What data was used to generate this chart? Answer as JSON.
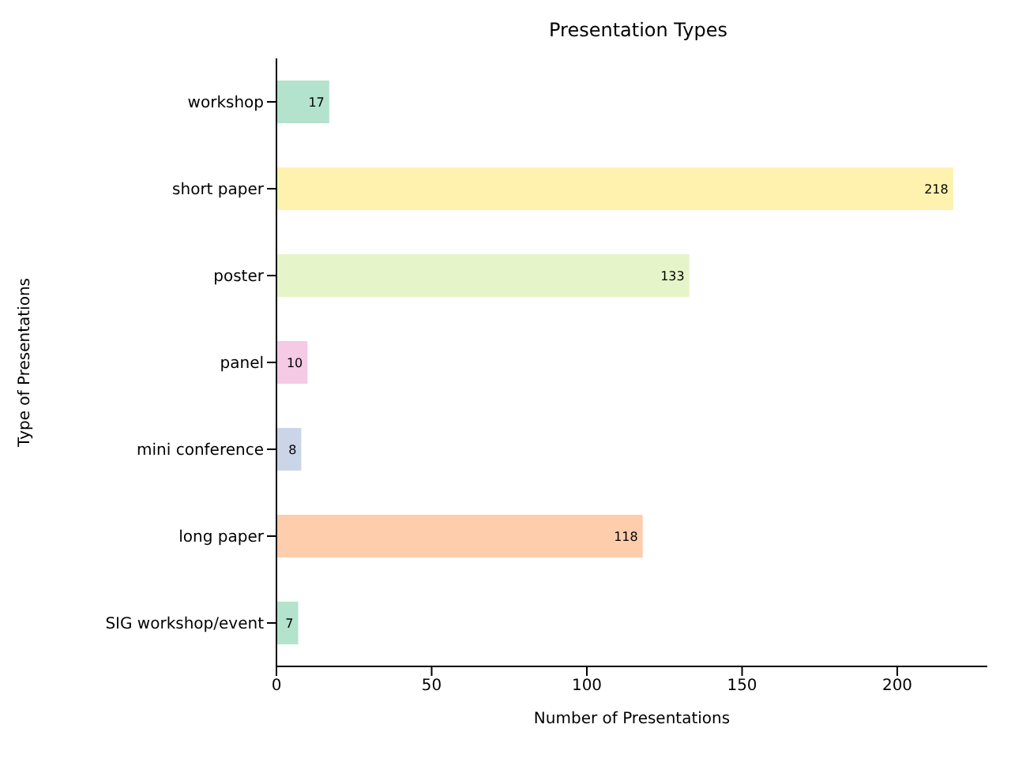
{
  "chart_data": {
    "type": "bar",
    "orientation": "horizontal",
    "title": "Presentation Types",
    "xlabel": "Number of Presentations",
    "ylabel": "Type of Presentations",
    "categories": [
      "workshop",
      "short paper",
      "poster",
      "panel",
      "mini conference",
      "long paper",
      "SIG workshop/event"
    ],
    "values": [
      17,
      218,
      133,
      10,
      8,
      118,
      7
    ],
    "colors": [
      "#b3e2cd",
      "#fff2ae",
      "#e6f5c9",
      "#f4cae4",
      "#cbd5e8",
      "#fdcdac",
      "#b3e2cd"
    ],
    "xlim": [
      0,
      229
    ],
    "xticks": [
      0,
      50,
      100,
      150,
      200
    ],
    "grid": false,
    "data_labels": true
  }
}
